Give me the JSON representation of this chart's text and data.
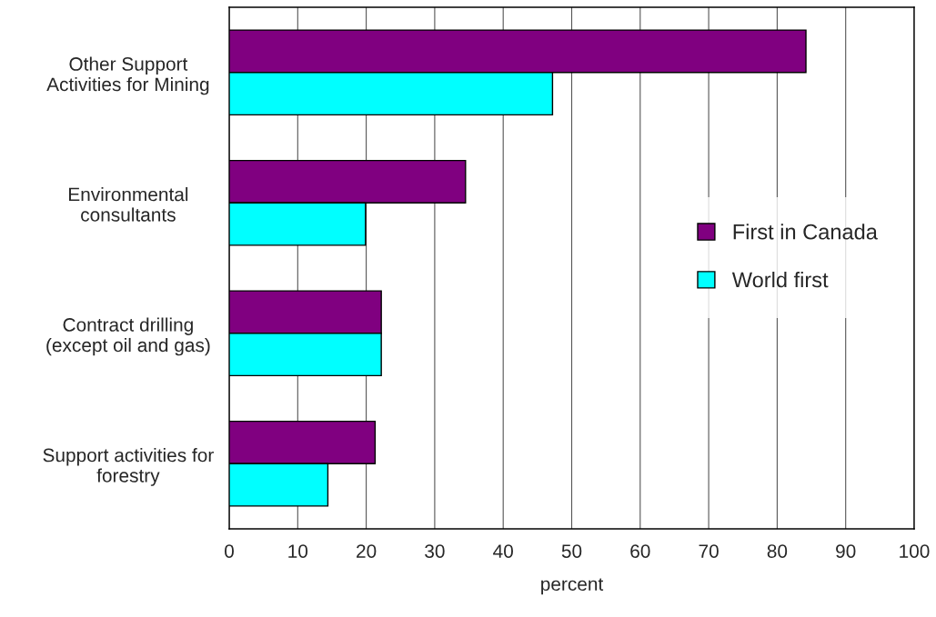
{
  "chart_data": {
    "type": "bar",
    "orientation": "horizontal",
    "xlabel": "percent",
    "categories": [
      "Other Support\nActivities for Mining",
      "Environmental\nconsultants",
      "Contract drilling\n(except oil and gas)",
      "Support activities for\nforestry"
    ],
    "series": [
      {
        "name": "First in Canada",
        "color": "#800080",
        "values": [
          84.2,
          34.5,
          22.2,
          21.3
        ]
      },
      {
        "name": "World first",
        "color": "#00ffff",
        "values": [
          47.2,
          19.9,
          22.2,
          14.4
        ]
      }
    ],
    "xlim": [
      0,
      100
    ],
    "xticks": [
      0,
      10,
      20,
      30,
      40,
      50,
      60,
      70,
      80,
      90,
      100
    ],
    "grid": "x",
    "legend": "center right"
  }
}
